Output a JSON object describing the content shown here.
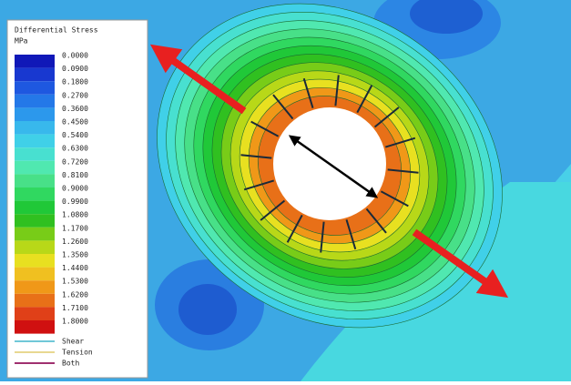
{
  "legend": {
    "title": "Differential Stress",
    "unit": "MPa",
    "levels": [
      {
        "label": "0.0000",
        "color": "#1018b8"
      },
      {
        "label": "0.0900",
        "color": "#1838d0"
      },
      {
        "label": "0.1800",
        "color": "#1e58e0"
      },
      {
        "label": "0.2700",
        "color": "#2478e8"
      },
      {
        "label": "0.3600",
        "color": "#2c98ec"
      },
      {
        "label": "0.4500",
        "color": "#38b8ec"
      },
      {
        "label": "0.5400",
        "color": "#40d0e8"
      },
      {
        "label": "0.6300",
        "color": "#48e0d0"
      },
      {
        "label": "0.7200",
        "color": "#50e8b0"
      },
      {
        "label": "0.8100",
        "color": "#48e088"
      },
      {
        "label": "0.9000",
        "color": "#30d860"
      },
      {
        "label": "0.9900",
        "color": "#20c838"
      },
      {
        "label": "1.0800",
        "color": "#30c020"
      },
      {
        "label": "1.1700",
        "color": "#78cc18"
      },
      {
        "label": "1.2600",
        "color": "#b8d818"
      },
      {
        "label": "1.3500",
        "color": "#e8e020"
      },
      {
        "label": "1.4400",
        "color": "#f0c020"
      },
      {
        "label": "1.5300",
        "color": "#f09818"
      },
      {
        "label": "1.6200",
        "color": "#e87018"
      },
      {
        "label": "1.7100",
        "color": "#e04018"
      },
      {
        "label": "1.8000",
        "color": "#d01010"
      }
    ],
    "lines": [
      {
        "label": "Shear",
        "color": "#70c8d8"
      },
      {
        "label": "Tension",
        "color": "#e8d890"
      },
      {
        "label": "Both",
        "color": "#a03070"
      }
    ]
  }
}
